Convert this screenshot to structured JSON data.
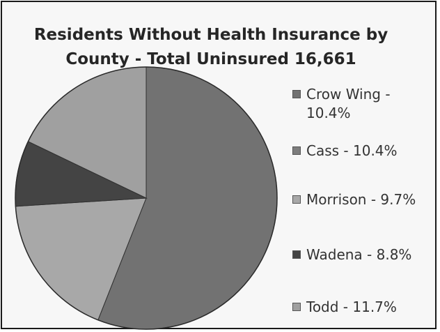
{
  "chart_data": {
    "type": "pie",
    "title_line1": "Residents Without Health Insurance by",
    "title_line2": "County - Total Uninsured 16,661",
    "slices": [
      {
        "name": "Crow Wing",
        "label": "Crow Wing - 10.4%",
        "value": 10.4,
        "color": "#727272"
      },
      {
        "name": "Cass",
        "label": "Cass - 10.4%",
        "value": 10.4,
        "color": "#7d7d7d"
      },
      {
        "name": "Morrison",
        "label": "Morrison - 9.7%",
        "value": 9.7,
        "color": "#a8a8a8"
      },
      {
        "name": "Wadena",
        "label": "Wadena - 8.8%",
        "value": 8.8,
        "color": "#444444"
      },
      {
        "name": "Todd",
        "label": "Todd - 11.7%",
        "value": 11.7,
        "color": "#a0a0a0"
      }
    ],
    "legend_position": "right"
  },
  "pie_geometry_values": {
    "largest_share": 56.0,
    "small_share": 8.1,
    "mid_share": 18.0,
    "other_share": 17.9
  }
}
